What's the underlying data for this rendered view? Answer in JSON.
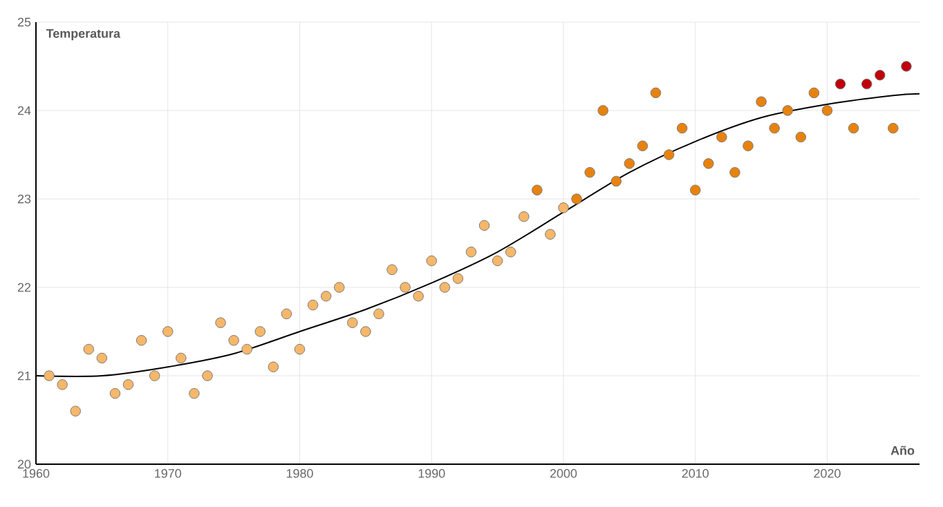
{
  "chart_data": {
    "type": "scatter",
    "xlabel": "Año",
    "ylabel": "Temperatura",
    "xlim": [
      1960,
      2027
    ],
    "ylim": [
      20,
      25
    ],
    "xticks": [
      1960,
      1970,
      1980,
      1990,
      2000,
      2010,
      2020
    ],
    "yticks": [
      20,
      21,
      22,
      23,
      24,
      25
    ],
    "grid": true,
    "marker": "circle",
    "series": [
      {
        "x": [
          1961,
          1962,
          1963,
          1964,
          1965,
          1966,
          1967,
          1968,
          1969,
          1970,
          1971,
          1972,
          1973,
          1974,
          1975,
          1976,
          1977,
          1978,
          1979,
          1980,
          1981,
          1982,
          1983,
          1984,
          1985,
          1986,
          1987,
          1988,
          1989,
          1990,
          1991,
          1992,
          1993,
          1994,
          1995,
          1996,
          1997,
          1998,
          1999,
          2000,
          2001,
          2002,
          2003,
          2004,
          2005,
          2006,
          2007,
          2008,
          2009,
          2010,
          2011,
          2012,
          2013,
          2014,
          2015,
          2016,
          2017,
          2018,
          2019,
          2020,
          2021,
          2022,
          2023,
          2024,
          2025,
          2026
        ],
        "values": [
          21.0,
          20.9,
          20.6,
          21.3,
          21.2,
          20.8,
          20.9,
          21.4,
          21.0,
          21.5,
          21.2,
          20.8,
          21.0,
          21.6,
          21.4,
          21.3,
          21.5,
          21.1,
          21.7,
          21.3,
          21.8,
          21.9,
          22.0,
          21.6,
          21.5,
          21.7,
          22.2,
          22.0,
          21.9,
          22.3,
          22.0,
          22.1,
          22.4,
          22.7,
          22.3,
          22.4,
          22.8,
          23.1,
          22.6,
          22.9,
          23.0,
          23.3,
          24.0,
          23.2,
          23.4,
          23.6,
          24.2,
          23.5,
          23.8,
          23.1,
          23.4,
          23.7,
          23.3,
          23.6,
          24.1,
          23.8,
          24.0,
          23.7,
          24.2,
          24.0,
          24.3,
          23.8,
          24.3,
          24.4,
          23.8,
          24.5
        ],
        "colors": [
          "#f5b76a",
          "#f5b76a",
          "#f5b76a",
          "#f5b76a",
          "#f5b76a",
          "#f5b76a",
          "#f5b76a",
          "#f5b76a",
          "#f5b76a",
          "#f5b76a",
          "#f5b76a",
          "#f5b76a",
          "#f5b76a",
          "#f5b76a",
          "#f5b76a",
          "#f5b76a",
          "#f5b76a",
          "#f5b76a",
          "#f5b76a",
          "#f5b76a",
          "#f5b76a",
          "#f5b76a",
          "#f5b76a",
          "#f5b76a",
          "#f5b76a",
          "#f5b76a",
          "#f5b76a",
          "#f5b76a",
          "#f5b76a",
          "#f5b76a",
          "#f5b76a",
          "#f5b76a",
          "#f5b76a",
          "#f5b76a",
          "#f5b76a",
          "#f5b76a",
          "#f5b76a",
          "#e8820e",
          "#f5b76a",
          "#f5b76a",
          "#e8820e",
          "#e8820e",
          "#e8820e",
          "#e8820e",
          "#e8820e",
          "#e8820e",
          "#e8820e",
          "#e8820e",
          "#e8820e",
          "#e8820e",
          "#e8820e",
          "#e8820e",
          "#e8820e",
          "#e8820e",
          "#e8820e",
          "#e8820e",
          "#e8820e",
          "#e8820e",
          "#e8820e",
          "#e8820e",
          "#c0000c",
          "#e8820e",
          "#c0000c",
          "#c0000c",
          "#e8820e",
          "#c0000c"
        ]
      },
      {
        "type": "line",
        "color": "#000000",
        "marker": "none",
        "x": [
          1960,
          1965,
          1970,
          1975,
          1980,
          1985,
          1990,
          1995,
          2000,
          2005,
          2010,
          2015,
          2020,
          2025,
          2027
        ],
        "values": [
          21.0,
          21.0,
          21.1,
          21.25,
          21.5,
          21.75,
          22.05,
          22.4,
          22.85,
          23.3,
          23.65,
          23.92,
          24.07,
          24.17,
          24.19
        ]
      }
    ]
  }
}
